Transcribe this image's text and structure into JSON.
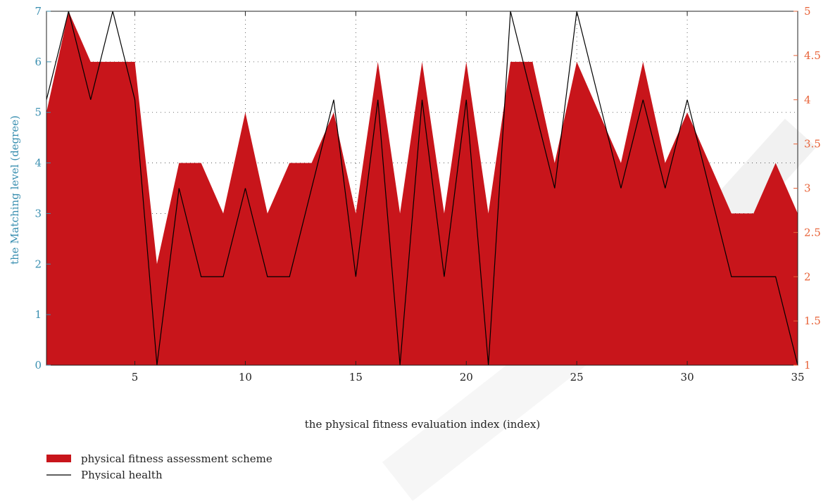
{
  "chart_data": {
    "type": "area",
    "xlabel": "the physical fitness evaluation index (index)",
    "ylabel": "the Matching level (degree)",
    "y2label": "",
    "xlim": [
      1,
      35
    ],
    "ylim": [
      0,
      7
    ],
    "y2lim": [
      1,
      5
    ],
    "xticks": [
      5,
      10,
      15,
      20,
      25,
      30,
      35
    ],
    "yticks": [
      0,
      1,
      2,
      3,
      4,
      5,
      6,
      7
    ],
    "y2ticks": [
      1,
      1.5,
      2,
      2.5,
      3,
      3.5,
      4,
      4.5,
      5
    ],
    "grid": true,
    "legend_position": "bottom-left",
    "colors": {
      "area": "#c8151b",
      "line": "#000000",
      "left_axis": "#3a8fb0",
      "right_axis": "#e8643a"
    },
    "series": [
      {
        "name": "physical fitness assessment scheme",
        "axis": "left",
        "style": "area",
        "x": [
          1,
          2,
          3,
          4,
          5,
          6,
          7,
          8,
          9,
          10,
          11,
          12,
          13,
          14,
          15,
          16,
          17,
          18,
          19,
          20,
          21,
          22,
          23,
          24,
          25,
          26,
          27,
          28,
          29,
          30,
          31,
          32,
          33,
          34,
          35
        ],
        "values": [
          5,
          7,
          6,
          6,
          6,
          2,
          4,
          4,
          3,
          5,
          3,
          4,
          4,
          5,
          3,
          6,
          3,
          6,
          3,
          6,
          3,
          6,
          6,
          4,
          6,
          5,
          4,
          6,
          4,
          5,
          4,
          3,
          3,
          4,
          3
        ]
      },
      {
        "name": "Physical health",
        "axis": "right",
        "style": "line",
        "x": [
          1,
          2,
          3,
          4,
          5,
          6,
          7,
          8,
          9,
          10,
          11,
          12,
          13,
          14,
          15,
          16,
          17,
          18,
          19,
          20,
          21,
          22,
          23,
          24,
          25,
          26,
          27,
          28,
          29,
          30,
          31,
          32,
          33,
          34,
          35
        ],
        "values": [
          4,
          5,
          4,
          5,
          4,
          1,
          3,
          2,
          2,
          3,
          2,
          2,
          3,
          4,
          2,
          4,
          1,
          4,
          2,
          4,
          1,
          5,
          4,
          3,
          5,
          4,
          3,
          4,
          3,
          4,
          3,
          2,
          2,
          2,
          1
        ]
      }
    ]
  }
}
